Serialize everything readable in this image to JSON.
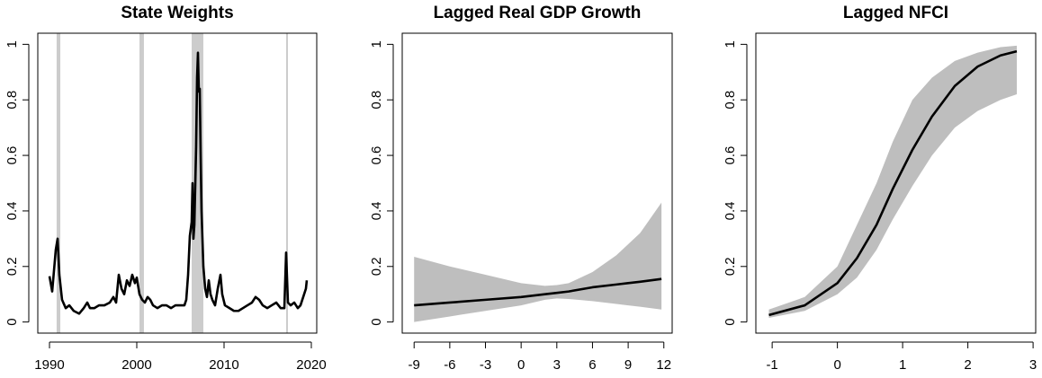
{
  "chart_data": [
    {
      "type": "line",
      "title": "State Weights",
      "color": "#000000",
      "x": [
        1990.0,
        1990.31,
        1990.72,
        1990.93,
        1991.13,
        1991.44,
        1991.86,
        1992.27,
        1992.78,
        1993.4,
        1993.92,
        1994.33,
        1994.64,
        1995.15,
        1995.67,
        1996.29,
        1996.91,
        1997.32,
        1997.63,
        1997.94,
        1998.25,
        1998.56,
        1998.87,
        1999.18,
        1999.48,
        1999.79,
        2000.0,
        2000.31,
        2000.62,
        2000.93,
        2001.24,
        2001.55,
        2001.86,
        2002.37,
        2002.89,
        2003.4,
        2003.92,
        2004.43,
        2004.95,
        2005.46,
        2005.67,
        2005.88,
        2006.08,
        2006.29,
        2006.39,
        2006.49,
        2006.6,
        2006.8,
        2006.91,
        2007.01,
        2007.11,
        2007.22,
        2007.32,
        2007.42,
        2007.63,
        2007.84,
        2008.04,
        2008.25,
        2008.45,
        2008.66,
        2008.97,
        2009.28,
        2009.59,
        2009.79,
        2010.1,
        2010.62,
        2011.13,
        2011.65,
        2012.16,
        2012.68,
        2013.2,
        2013.61,
        2014.02,
        2014.43,
        2014.95,
        2015.46,
        2015.98,
        2016.49,
        2016.91,
        2017.11,
        2017.32,
        2017.63,
        2018.04,
        2018.45,
        2018.76,
        2019.07,
        2019.38,
        2019.48
      ],
      "values": [
        0.165,
        0.11,
        0.26,
        0.3,
        0.17,
        0.08,
        0.05,
        0.06,
        0.04,
        0.03,
        0.05,
        0.07,
        0.05,
        0.05,
        0.06,
        0.06,
        0.07,
        0.09,
        0.07,
        0.17,
        0.12,
        0.1,
        0.15,
        0.13,
        0.17,
        0.14,
        0.16,
        0.1,
        0.08,
        0.07,
        0.09,
        0.08,
        0.06,
        0.05,
        0.06,
        0.06,
        0.05,
        0.06,
        0.06,
        0.06,
        0.08,
        0.17,
        0.31,
        0.36,
        0.5,
        0.3,
        0.35,
        0.63,
        0.88,
        0.97,
        0.83,
        0.84,
        0.6,
        0.4,
        0.2,
        0.12,
        0.09,
        0.15,
        0.1,
        0.08,
        0.06,
        0.12,
        0.17,
        0.1,
        0.06,
        0.05,
        0.04,
        0.04,
        0.05,
        0.06,
        0.07,
        0.09,
        0.08,
        0.06,
        0.05,
        0.06,
        0.07,
        0.05,
        0.05,
        0.25,
        0.07,
        0.06,
        0.07,
        0.05,
        0.06,
        0.09,
        0.12,
        0.15
      ],
      "shaded_regions": [
        [
          1990.82,
          1991.24
        ],
        [
          2000.31,
          2000.82
        ],
        [
          2006.29,
          2007.63
        ],
        [
          2017.11,
          2017.32
        ]
      ],
      "shade_color": "#cccccc",
      "xlim": [
        1988.66,
        2020.62
      ],
      "xticks": [
        1990,
        2000,
        2010,
        2020
      ],
      "ylim": [
        -0.04,
        1.04
      ],
      "yticks": [
        0,
        0.2,
        0.4,
        0.6,
        0.8,
        1
      ]
    },
    {
      "type": "line",
      "title": "Lagged Real GDP Growth",
      "color": "#000000",
      "x": [
        -9,
        -6,
        -3,
        0,
        2,
        3,
        4,
        6,
        8,
        9,
        10,
        11.8
      ],
      "values": [
        0.06,
        0.07,
        0.08,
        0.09,
        0.1,
        0.105,
        0.11,
        0.125,
        0.135,
        0.14,
        0.145,
        0.155
      ],
      "band": {
        "upper": [
          0.235,
          0.2,
          0.17,
          0.14,
          0.13,
          0.133,
          0.14,
          0.18,
          0.24,
          0.28,
          0.32,
          0.43
        ],
        "lower": [
          0.0,
          0.02,
          0.04,
          0.06,
          0.08,
          0.085,
          0.083,
          0.075,
          0.065,
          0.06,
          0.055,
          0.045
        ],
        "color": "#bebebe"
      },
      "xlim": [
        -10,
        12.7
      ],
      "xticks": [
        -9,
        -6,
        -3,
        0,
        3,
        6,
        9,
        12
      ],
      "ylim": [
        -0.04,
        1.04
      ],
      "yticks": [
        0,
        0.2,
        0.4,
        0.6,
        0.8,
        1
      ]
    },
    {
      "type": "line",
      "title": "Lagged NFCI",
      "color": "#000000",
      "x": [
        -1.05,
        -0.5,
        0,
        0.3,
        0.6,
        0.85,
        1.15,
        1.45,
        1.8,
        2.15,
        2.5,
        2.75
      ],
      "values": [
        0.025,
        0.06,
        0.14,
        0.23,
        0.35,
        0.48,
        0.62,
        0.74,
        0.85,
        0.92,
        0.96,
        0.975
      ],
      "band": {
        "upper": [
          0.045,
          0.09,
          0.2,
          0.35,
          0.5,
          0.65,
          0.8,
          0.88,
          0.94,
          0.97,
          0.99,
          0.995
        ],
        "lower": [
          0.015,
          0.04,
          0.1,
          0.16,
          0.26,
          0.37,
          0.49,
          0.6,
          0.7,
          0.76,
          0.8,
          0.82
        ],
        "color": "#bebebe"
      },
      "xlim": [
        -1.25,
        3.04
      ],
      "xticks": [
        -1,
        0,
        1,
        2,
        3
      ],
      "ylim": [
        -0.04,
        1.04
      ],
      "yticks": [
        0,
        0.2,
        0.4,
        0.6,
        0.8,
        1
      ]
    }
  ]
}
